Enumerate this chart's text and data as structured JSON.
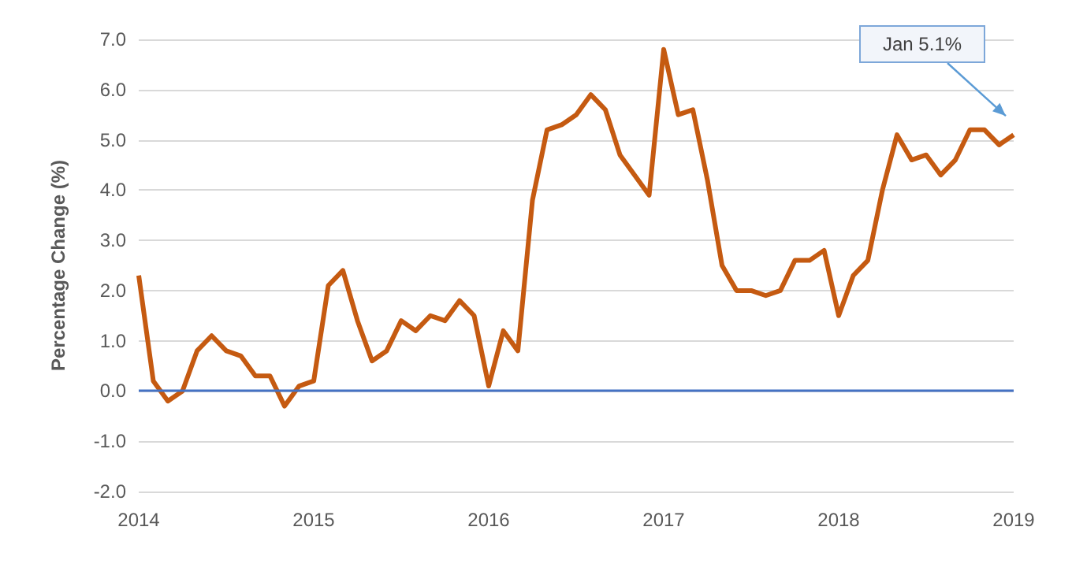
{
  "chart_data": {
    "type": "line",
    "ylabel": "Percentage Change (%)",
    "categories": [
      "2014",
      null,
      null,
      null,
      null,
      null,
      null,
      null,
      null,
      null,
      null,
      null,
      "2015",
      null,
      null,
      null,
      null,
      null,
      null,
      null,
      null,
      null,
      null,
      null,
      "2016",
      null,
      null,
      null,
      null,
      null,
      null,
      null,
      null,
      null,
      null,
      null,
      "2017",
      null,
      null,
      null,
      null,
      null,
      null,
      null,
      null,
      null,
      null,
      null,
      "2018",
      null,
      null,
      null,
      null,
      null,
      null,
      null,
      null,
      null,
      null,
      null,
      "2019"
    ],
    "values": [
      2.3,
      0.2,
      -0.2,
      0.0,
      0.8,
      1.1,
      0.8,
      0.7,
      0.3,
      0.3,
      -0.3,
      0.1,
      0.2,
      2.1,
      2.4,
      1.4,
      0.6,
      0.8,
      1.4,
      1.2,
      1.5,
      1.4,
      1.8,
      1.5,
      0.1,
      1.2,
      0.8,
      3.8,
      5.2,
      5.3,
      5.5,
      5.9,
      5.6,
      4.7,
      4.3,
      3.9,
      6.8,
      5.5,
      5.6,
      4.2,
      2.5,
      2.0,
      2.0,
      1.9,
      2.0,
      2.6,
      2.6,
      2.8,
      1.5,
      2.3,
      2.6,
      4.0,
      5.1,
      4.6,
      4.7,
      4.3,
      4.6,
      5.2,
      5.2,
      4.9,
      5.1
    ],
    "color": "#c55a11",
    "ylim": [
      -2,
      7
    ],
    "yticks": [
      {
        "value": -2,
        "label": "-2.0"
      },
      {
        "value": -1,
        "label": "-1.0"
      },
      {
        "value": 0,
        "label": "0.0"
      },
      {
        "value": 1,
        "label": "1.0"
      },
      {
        "value": 2,
        "label": "2.0"
      },
      {
        "value": 3,
        "label": "3.0"
      },
      {
        "value": 4,
        "label": "4.0"
      },
      {
        "value": 5,
        "label": "5.0"
      },
      {
        "value": 6,
        "label": "6.0"
      },
      {
        "value": 7,
        "label": "7.0"
      }
    ],
    "grid": "y",
    "marker": "none",
    "ref_lines": [
      {
        "axis": "y",
        "value": 0,
        "color": "#4472c4"
      }
    ],
    "annotations": [
      "Jan 5.1%"
    ]
  }
}
